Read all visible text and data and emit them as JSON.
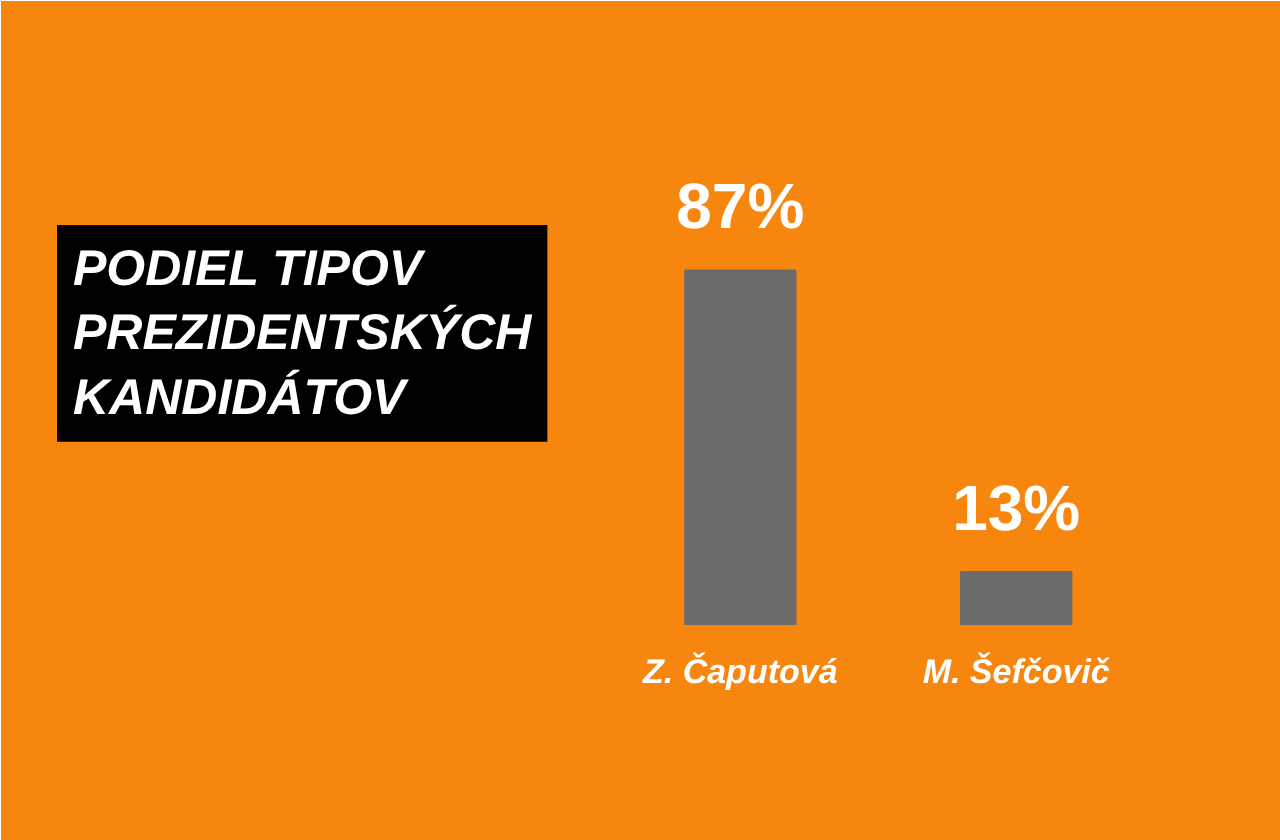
{
  "chart_data": {
    "type": "bar",
    "title": "PODIEL TIPOV PREZIDENTSKÝCH KANDIDÁTOV",
    "categories": [
      "Z. Čaputová",
      "M. Šefčovič"
    ],
    "values": [
      87,
      13
    ],
    "value_labels": [
      "87%",
      "13%"
    ],
    "color": "#6b6b6b"
  }
}
